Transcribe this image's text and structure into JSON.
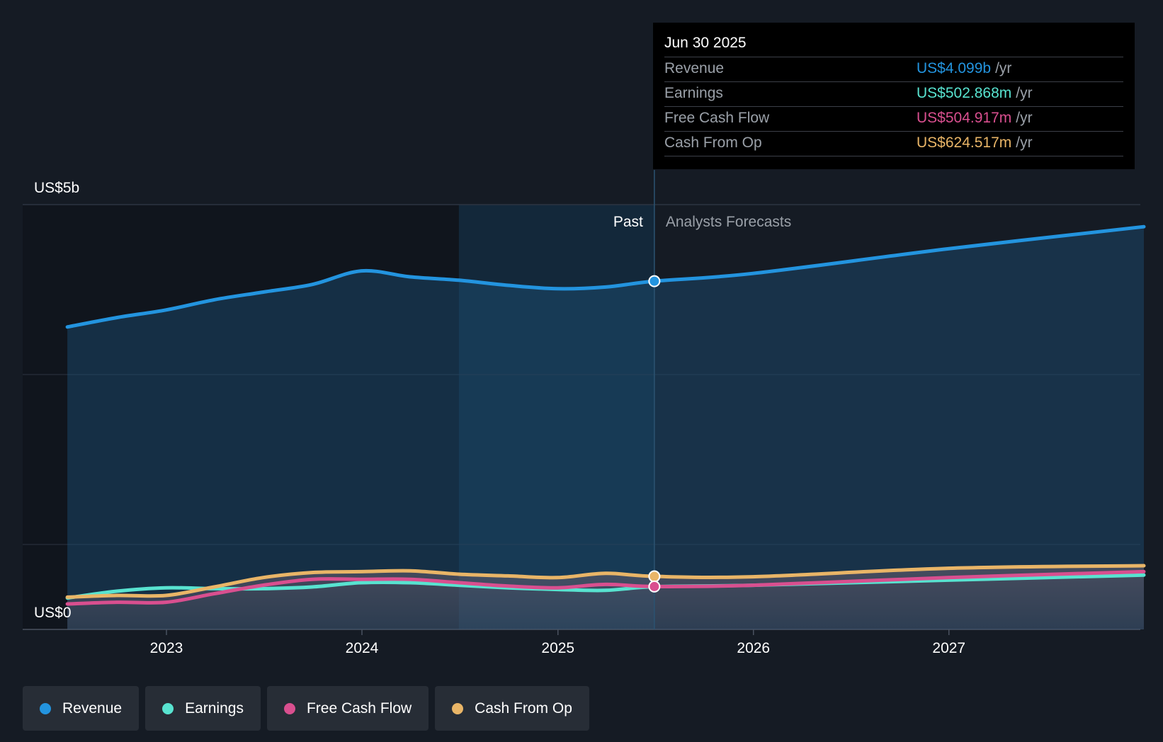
{
  "chart_data": {
    "type": "area",
    "y_axis": {
      "top_label": "US$5b",
      "bottom_label": "US$0",
      "ylim": [
        0,
        5000000000
      ]
    },
    "x_ticks": [
      "2023",
      "2024",
      "2025",
      "2026",
      "2027"
    ],
    "divider": {
      "past_label": "Past",
      "forecast_label": "Analysts Forecasts",
      "date": "2025-06-30"
    },
    "grid": true,
    "series": [
      {
        "name": "Revenue",
        "color": "#2394df",
        "points": [
          [
            "2022-06-30",
            3560000000
          ],
          [
            "2022-09-30",
            3670000000
          ],
          [
            "2022-12-31",
            3760000000
          ],
          [
            "2023-03-31",
            3880000000
          ],
          [
            "2023-06-30",
            3970000000
          ],
          [
            "2023-09-30",
            4060000000
          ],
          [
            "2023-12-31",
            4220000000
          ],
          [
            "2024-03-31",
            4150000000
          ],
          [
            "2024-06-30",
            4110000000
          ],
          [
            "2024-09-30",
            4050000000
          ],
          [
            "2024-12-31",
            4010000000
          ],
          [
            "2025-03-31",
            4030000000
          ],
          [
            "2025-06-30",
            4099000000
          ],
          [
            "2025-12-31",
            4190000000
          ],
          [
            "2026-12-31",
            4480000000
          ],
          [
            "2027-12-31",
            4740000000
          ]
        ]
      },
      {
        "name": "Earnings",
        "color": "#58e3d0",
        "points": [
          [
            "2022-06-30",
            370000000
          ],
          [
            "2022-09-30",
            450000000
          ],
          [
            "2022-12-31",
            490000000
          ],
          [
            "2023-03-31",
            480000000
          ],
          [
            "2023-06-30",
            480000000
          ],
          [
            "2023-09-30",
            500000000
          ],
          [
            "2023-12-31",
            550000000
          ],
          [
            "2024-03-31",
            550000000
          ],
          [
            "2024-06-30",
            520000000
          ],
          [
            "2024-09-30",
            490000000
          ],
          [
            "2024-12-31",
            470000000
          ],
          [
            "2025-03-31",
            460000000
          ],
          [
            "2025-06-30",
            502868000
          ],
          [
            "2025-12-31",
            520000000
          ],
          [
            "2026-12-31",
            580000000
          ],
          [
            "2027-12-31",
            640000000
          ]
        ]
      },
      {
        "name": "Free Cash Flow",
        "color": "#d94f8f",
        "points": [
          [
            "2022-06-30",
            300000000
          ],
          [
            "2022-09-30",
            320000000
          ],
          [
            "2022-12-31",
            320000000
          ],
          [
            "2023-03-31",
            420000000
          ],
          [
            "2023-06-30",
            520000000
          ],
          [
            "2023-09-30",
            590000000
          ],
          [
            "2023-12-31",
            590000000
          ],
          [
            "2024-03-31",
            590000000
          ],
          [
            "2024-06-30",
            550000000
          ],
          [
            "2024-09-30",
            510000000
          ],
          [
            "2024-12-31",
            490000000
          ],
          [
            "2025-03-31",
            530000000
          ],
          [
            "2025-06-30",
            504917000
          ],
          [
            "2025-12-31",
            520000000
          ],
          [
            "2026-12-31",
            610000000
          ],
          [
            "2027-12-31",
            680000000
          ]
        ]
      },
      {
        "name": "Cash From Op",
        "color": "#e9b567",
        "points": [
          [
            "2022-06-30",
            380000000
          ],
          [
            "2022-09-30",
            400000000
          ],
          [
            "2022-12-31",
            400000000
          ],
          [
            "2023-03-31",
            500000000
          ],
          [
            "2023-06-30",
            610000000
          ],
          [
            "2023-09-30",
            670000000
          ],
          [
            "2023-12-31",
            680000000
          ],
          [
            "2024-03-31",
            690000000
          ],
          [
            "2024-06-30",
            650000000
          ],
          [
            "2024-09-30",
            630000000
          ],
          [
            "2024-12-31",
            610000000
          ],
          [
            "2025-03-31",
            660000000
          ],
          [
            "2025-06-30",
            624517000
          ],
          [
            "2025-12-31",
            620000000
          ],
          [
            "2026-12-31",
            720000000
          ],
          [
            "2027-12-31",
            750000000
          ]
        ]
      }
    ]
  },
  "tooltip": {
    "date": "Jun 30 2025",
    "unit": "/yr",
    "rows": [
      {
        "label": "Revenue",
        "value": "US$4.099b",
        "color": "#2394df"
      },
      {
        "label": "Earnings",
        "value": "US$502.868m",
        "color": "#58e3d0"
      },
      {
        "label": "Free Cash Flow",
        "value": "US$504.917m",
        "color": "#d94f8f"
      },
      {
        "label": "Cash From Op",
        "value": "US$624.517m",
        "color": "#e9b567"
      }
    ]
  },
  "legend": [
    {
      "label": "Revenue",
      "color": "#2394df"
    },
    {
      "label": "Earnings",
      "color": "#58e3d0"
    },
    {
      "label": "Free Cash Flow",
      "color": "#d94f8f"
    },
    {
      "label": "Cash From Op",
      "color": "#e9b567"
    }
  ]
}
